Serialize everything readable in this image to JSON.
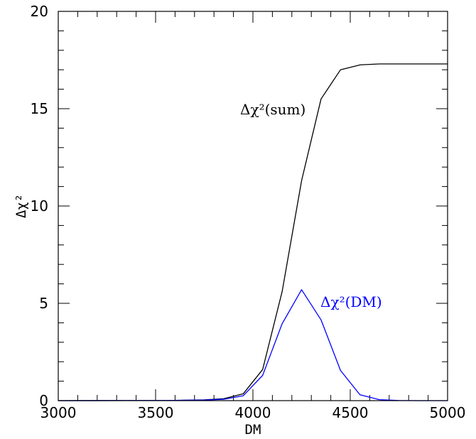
{
  "chart_data": {
    "type": "line",
    "xlabel": "DM",
    "ylabel": "Δχ²",
    "xlim": [
      3000,
      5000
    ],
    "ylim": [
      0,
      20
    ],
    "x_ticks": [
      "3000",
      "3500",
      "4000",
      "4500",
      "5000"
    ],
    "y_ticks": [
      "0",
      "5",
      "10",
      "15",
      "20"
    ],
    "grid": false,
    "series": [
      {
        "name": "Δχ²(sum)",
        "color": "#000000",
        "x": [
          3000,
          3550,
          3650,
          3750,
          3850,
          3950,
          4050,
          4150,
          4250,
          4350,
          4450,
          4550,
          4650,
          4750,
          4850,
          5000
        ],
        "y": [
          0,
          0.01,
          0.02,
          0.04,
          0.1,
          0.35,
          1.6,
          5.6,
          11.3,
          15.5,
          17.0,
          17.25,
          17.3,
          17.3,
          17.3,
          17.3
        ]
      },
      {
        "name": "Δχ²(DM)",
        "color": "#0000ff",
        "x": [
          3000,
          3550,
          3650,
          3750,
          3850,
          3950,
          4050,
          4150,
          4250,
          4350,
          4450,
          4550,
          4650,
          4750,
          4850,
          5000
        ],
        "y": [
          0,
          0.01,
          0.02,
          0.03,
          0.07,
          0.25,
          1.3,
          3.95,
          5.7,
          4.15,
          1.55,
          0.3,
          0.05,
          0.01,
          0.0,
          0.0
        ]
      }
    ]
  }
}
